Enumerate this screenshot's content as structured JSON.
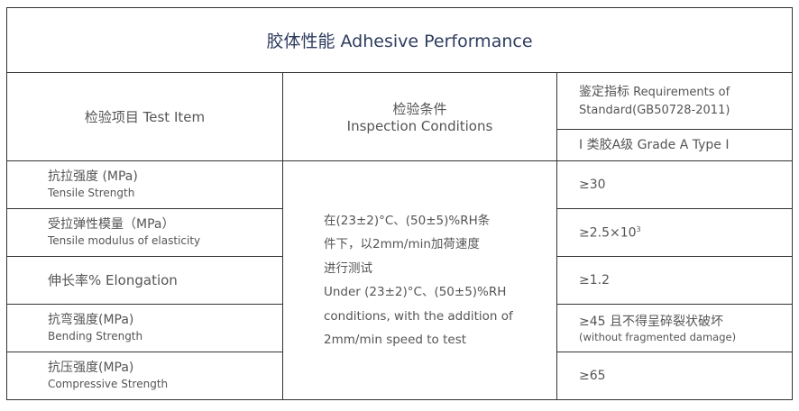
{
  "title": "胶体性能 Adhesive Performance",
  "headers": {
    "item": "检验项目 Test Item",
    "conditions_cn": "检验条件",
    "conditions_en": "Inspection Conditions",
    "requirements_cn": "鉴定指标",
    "requirements_en": " Requirements of",
    "requirements_std": "Standard(GB50728-2011)",
    "grade": "Ⅰ 类胶A级  Grade A Type I"
  },
  "conditions": {
    "cn_line1": "在(23±2)°C、(50±5)%RH条",
    "cn_line2": "件下，以2mm/min加荷速度",
    "cn_line3": "进行测试",
    "en_line1": "Under (23±2)°C、(50±5)%RH",
    "en_line2": "conditions, with the addition of",
    "en_line3": "2mm/min speed to test"
  },
  "rows": [
    {
      "cn": "抗拉强度 (MPa)",
      "en": "Tensile Strength",
      "value": "≥30",
      "value_sup": "",
      "value_note": ""
    },
    {
      "cn": "受拉弹性模量（MPa）",
      "en": "Tensile modulus of elasticity",
      "value": "≥2.5×10",
      "value_sup": "3",
      "value_note": ""
    },
    {
      "cn": "伸长率% Elongation",
      "en": "",
      "value": "≥1.2",
      "value_sup": "",
      "value_note": ""
    },
    {
      "cn": "抗弯强度(MPa)",
      "en": "Bending Strength",
      "value": "≥45 且不得呈碎裂状破坏",
      "value_sup": "",
      "value_note": "(without fragmented damage)"
    },
    {
      "cn": "抗压强度(MPa)",
      "en": "Compressive Strength",
      "value": "≥65",
      "value_sup": "",
      "value_note": ""
    }
  ]
}
